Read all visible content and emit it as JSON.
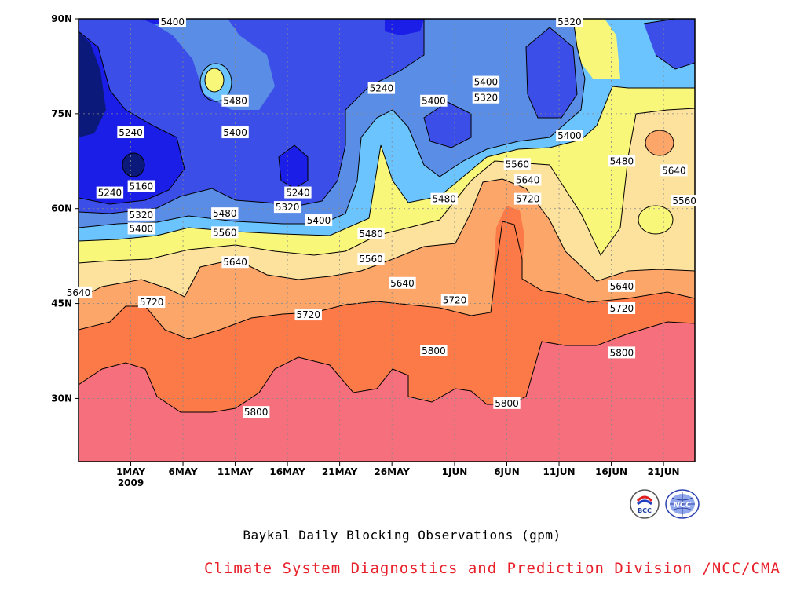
{
  "chart_data": {
    "type": "contour",
    "title": "Baykal Daily Blocking Observations (gpm)",
    "credit": "Climate System Diagnostics and Prediction Division /NCC/CMA",
    "x_ticks": [
      "1MAY",
      "6MAY",
      "11MAY",
      "16MAY",
      "21MAY",
      "26MAY",
      "1JUN",
      "6JUN",
      "11JUN",
      "16JUN",
      "21JUN"
    ],
    "x_year": "2009",
    "y_ticks": [
      "30N",
      "45N",
      "60N",
      "75N",
      "90N"
    ],
    "y_values": [
      30,
      45,
      60,
      75,
      90
    ],
    "ylim": [
      20,
      90
    ],
    "xlim": [
      "2009-04-26",
      "2009-06-24"
    ],
    "grid": true,
    "levels": [
      5160,
      5240,
      5320,
      5400,
      5480,
      5560,
      5640,
      5720,
      5800
    ],
    "level_colors": [
      "#0b1a7a",
      "#1a1ee6",
      "#3b4fe8",
      "#5a8de6",
      "#6cc4ff",
      "#f9f77a",
      "#fde29e",
      "#fca66a",
      "#fb7a48",
      "#f5707c"
    ],
    "contour_labels": [
      {
        "text": "5400",
        "lon_day": "2009-05-05",
        "lat": 89.5
      },
      {
        "text": "5320",
        "lon_day": "2009-06-12",
        "lat": 89.5
      },
      {
        "text": "5240",
        "lon_day": "2009-05-25",
        "lat": 79
      },
      {
        "text": "5400",
        "lon_day": "2009-06-04",
        "lat": 80
      },
      {
        "text": "5480",
        "lon_day": "2009-05-11",
        "lat": 77
      },
      {
        "text": "5400",
        "lon_day": "2009-05-30",
        "lat": 77
      },
      {
        "text": "5320",
        "lon_day": "2009-06-04",
        "lat": 77.5
      },
      {
        "text": "5400",
        "lon_day": "2009-05-11",
        "lat": 72
      },
      {
        "text": "5240",
        "lon_day": "2009-05-01",
        "lat": 72
      },
      {
        "text": "5400",
        "lon_day": "2009-06-12",
        "lat": 71.5
      },
      {
        "text": "5480",
        "lon_day": "2009-06-17",
        "lat": 67.5
      },
      {
        "text": "5560",
        "lon_day": "2009-06-07",
        "lat": 67
      },
      {
        "text": "5640",
        "lon_day": "2009-06-22",
        "lat": 66
      },
      {
        "text": "5640",
        "lon_day": "2009-06-08",
        "lat": 64.5
      },
      {
        "text": "5160",
        "lon_day": "2009-05-02",
        "lat": 63.5
      },
      {
        "text": "5240",
        "lon_day": "2009-04-29",
        "lat": 62.5
      },
      {
        "text": "5240",
        "lon_day": "2009-05-17",
        "lat": 62.5
      },
      {
        "text": "5720",
        "lon_day": "2009-06-08",
        "lat": 61.5
      },
      {
        "text": "5480",
        "lon_day": "2009-05-31",
        "lat": 61.5
      },
      {
        "text": "5560",
        "lon_day": "2009-06-23",
        "lat": 61.2
      },
      {
        "text": "5320",
        "lon_day": "2009-05-16",
        "lat": 60.2
      },
      {
        "text": "5480",
        "lon_day": "2009-05-10",
        "lat": 59.2
      },
      {
        "text": "5320",
        "lon_day": "2009-05-02",
        "lat": 59
      },
      {
        "text": "5400",
        "lon_day": "2009-05-19",
        "lat": 58.1
      },
      {
        "text": "5400",
        "lon_day": "2009-05-02",
        "lat": 56.8
      },
      {
        "text": "5560",
        "lon_day": "2009-05-10",
        "lat": 56.2
      },
      {
        "text": "5480",
        "lon_day": "2009-05-24",
        "lat": 56
      },
      {
        "text": "5560",
        "lon_day": "2009-05-24",
        "lat": 52
      },
      {
        "text": "5640",
        "lon_day": "2009-05-11",
        "lat": 51.5
      },
      {
        "text": "5640",
        "lon_day": "2009-05-27",
        "lat": 48.2
      },
      {
        "text": "5640",
        "lon_day": "2009-06-17",
        "lat": 47.7
      },
      {
        "text": "5640",
        "lon_day": "2009-04-26",
        "lat": 46.7
      },
      {
        "text": "5720",
        "lon_day": "2009-05-03",
        "lat": 45.2
      },
      {
        "text": "5720",
        "lon_day": "2009-06-01",
        "lat": 45.5
      },
      {
        "text": "5720",
        "lon_day": "2009-06-17",
        "lat": 44.2
      },
      {
        "text": "5720",
        "lon_day": "2009-05-18",
        "lat": 43.2
      },
      {
        "text": "5800",
        "lon_day": "2009-05-30",
        "lat": 37.5
      },
      {
        "text": "5800",
        "lon_day": "2009-06-17",
        "lat": 37.2
      },
      {
        "text": "5800",
        "lon_day": "2009-06-06",
        "lat": 29.2
      },
      {
        "text": "5800",
        "lon_day": "2009-05-13",
        "lat": 27.8
      }
    ]
  },
  "logos": [
    "bcc-logo",
    "ncc-logo"
  ],
  "logo_text": {
    "bcc": "BCC",
    "ncc": "NCC"
  }
}
